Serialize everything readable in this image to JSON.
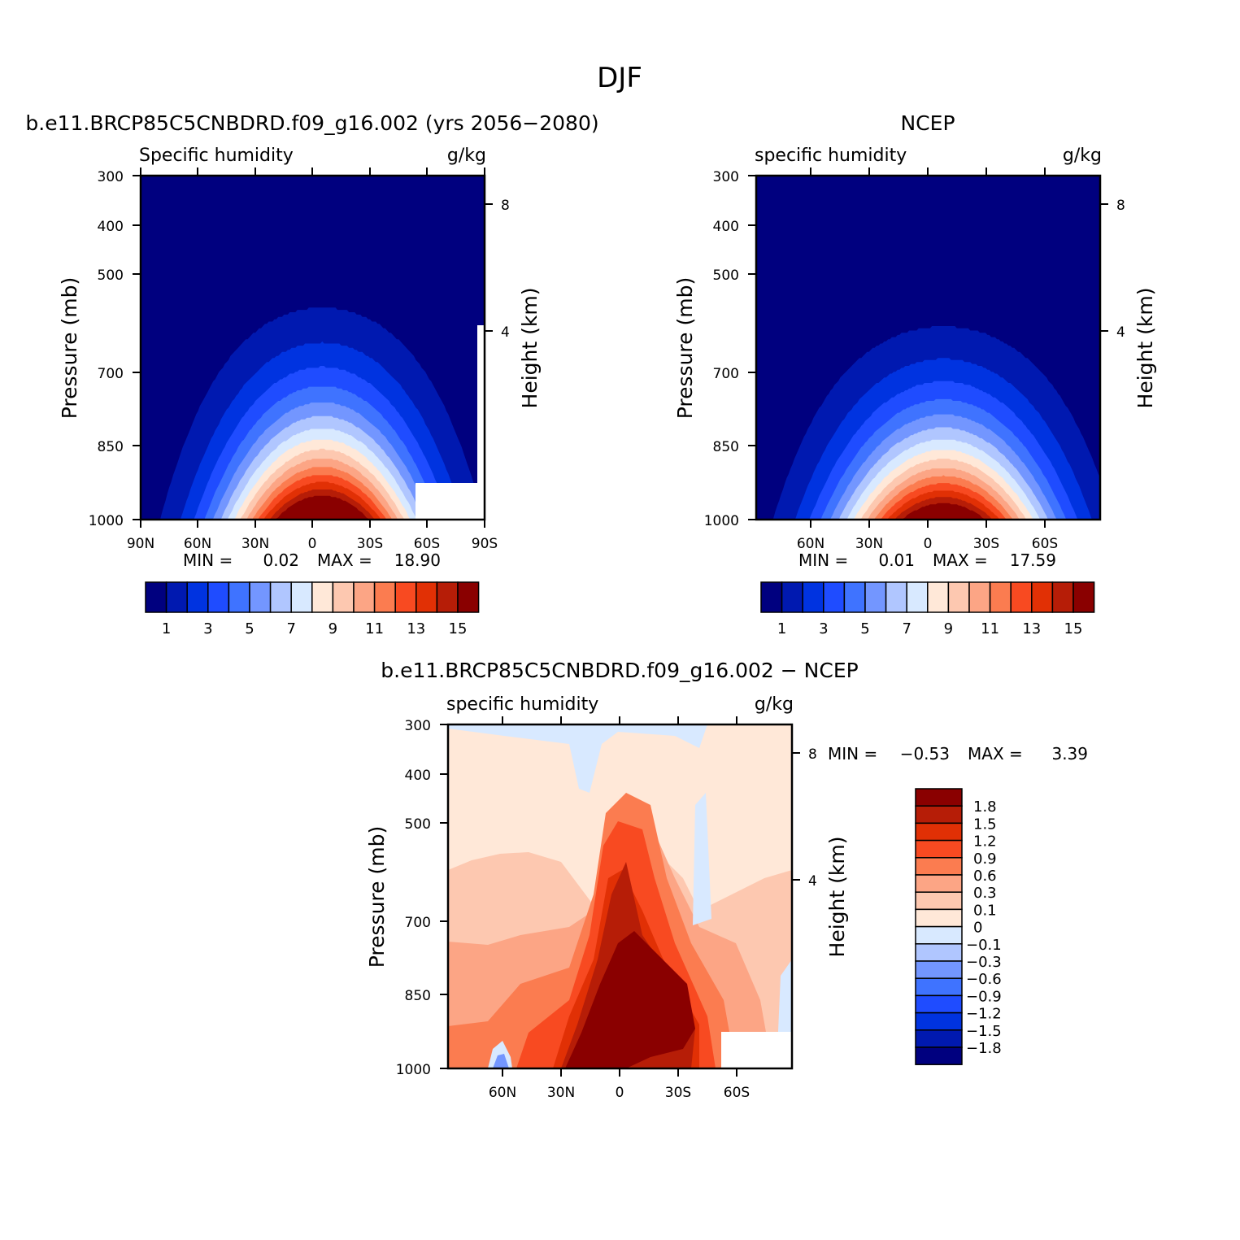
{
  "figure_title": "DJF",
  "chart_data": [
    {
      "type": "heatmap",
      "id": "model",
      "title": "b.e11.BRCP85C5CNBDRD.f09_g16.002 (yrs 2056-2080)",
      "left_label": "Specific humidity",
      "right_label": "g/kg",
      "ylabel": "Pressure (mb)",
      "ylabel_right": "Height (km)",
      "y_ticks": [
        "300",
        "400",
        "500",
        "700",
        "850",
        "1000"
      ],
      "y_right_ticks": [
        "8",
        "4"
      ],
      "x_ticks": [
        "90N",
        "60N",
        "30N",
        "0",
        "30S",
        "60S",
        "90S"
      ],
      "min_label": "MIN =",
      "min_value": "0.02",
      "max_label": "MAX =",
      "max_value": "18.90",
      "levels": [
        1,
        2,
        3,
        4,
        5,
        6,
        7,
        8,
        9,
        10,
        11,
        12,
        13,
        14,
        15
      ],
      "colorbar_labels": [
        "1",
        "3",
        "5",
        "7",
        "9",
        "11",
        "13",
        "15"
      ],
      "peak_value": 18.9,
      "peak_lat": -5,
      "half_width_deg": 62,
      "top_pressure_reach": 340
    },
    {
      "type": "heatmap",
      "id": "ncep",
      "title": "NCEP",
      "left_label": "specific humidity",
      "right_label": "g/kg",
      "ylabel": "Pressure (mb)",
      "ylabel_right": "Height (km)",
      "y_ticks": [
        "300",
        "400",
        "500",
        "700",
        "850",
        "1000"
      ],
      "y_right_ticks": [
        "8",
        "4"
      ],
      "x_ticks": [
        "60N",
        "30N",
        "0",
        "30S",
        "60S"
      ],
      "min_label": "MIN =",
      "min_value": "0.01",
      "max_label": "MAX =",
      "max_value": "17.59",
      "levels": [
        1,
        2,
        3,
        4,
        5,
        6,
        7,
        8,
        9,
        10,
        11,
        12,
        13,
        14,
        15
      ],
      "colorbar_labels": [
        "1",
        "3",
        "5",
        "7",
        "9",
        "11",
        "13",
        "15"
      ],
      "peak_value": 17.59,
      "peak_lat": -8,
      "half_width_deg": 66,
      "top_pressure_reach": 375
    },
    {
      "type": "heatmap",
      "id": "diff",
      "title": "b.e11.BRCP85C5CNBDRD.f09_g16.002 - NCEP",
      "left_label": "specific humidity",
      "right_label": "g/kg",
      "ylabel": "Pressure (mb)",
      "ylabel_right": "Height (km)",
      "y_ticks": [
        "300",
        "400",
        "500",
        "700",
        "850",
        "1000"
      ],
      "y_right_ticks": [
        "8",
        "4"
      ],
      "x_ticks": [
        "60N",
        "30N",
        "0",
        "30S",
        "60S"
      ],
      "min_label": "MIN =",
      "min_value": "-0.53",
      "max_label": "MAX =",
      "max_value": "3.39",
      "levels": [
        -1.8,
        -1.5,
        -1.2,
        -0.9,
        -0.6,
        -0.3,
        -0.1,
        0,
        0.1,
        0.3,
        0.6,
        0.9,
        1.2,
        1.5,
        1.8
      ],
      "colorbar_labels": [
        "1.8",
        "1.5",
        "1.2",
        "0.9",
        "0.6",
        "0.3",
        "0.1",
        "0",
        "-0.1",
        "-0.3",
        "-0.6",
        "-0.9",
        "-1.2",
        "-1.5",
        "-1.8"
      ]
    }
  ],
  "palette": [
    "#00007f",
    "#0019b0",
    "#0033e0",
    "#1f4cff",
    "#3f73ff",
    "#7396ff",
    "#b0c6ff",
    "#d8e9ff",
    "#ffe8d8",
    "#fdc8b0",
    "#fca585",
    "#fb7c50",
    "#f84a21",
    "#e13005",
    "#b61d07",
    "#8a0000"
  ]
}
